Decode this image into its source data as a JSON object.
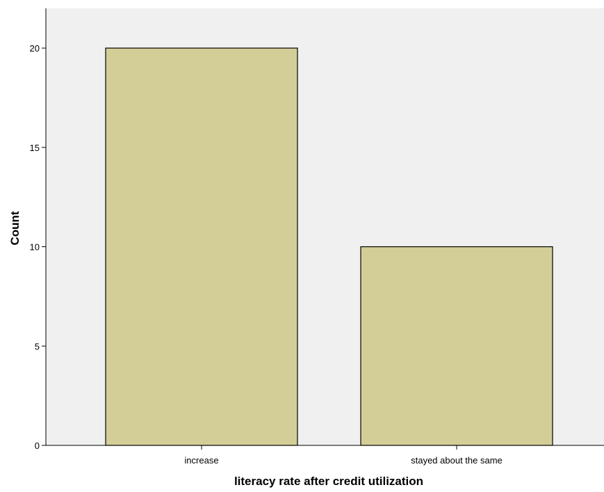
{
  "chart_data": {
    "type": "bar",
    "title": "",
    "xlabel": "literacy rate after credit utilization",
    "ylabel": "Count",
    "categories": [
      "increase",
      "stayed about the same"
    ],
    "values": [
      20,
      10
    ],
    "ylim": [
      0,
      22
    ],
    "yticks": [
      0,
      5,
      10,
      15,
      20
    ],
    "grid": false,
    "colors": {
      "bar_fill": "#d3ce97",
      "bar_stroke": "#000000",
      "plot_background": "#f0f0f0",
      "axis": "#000000"
    }
  }
}
